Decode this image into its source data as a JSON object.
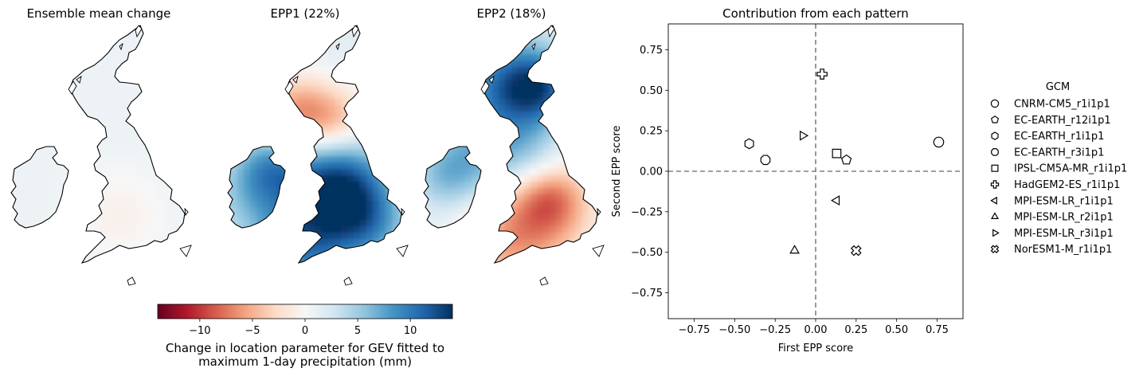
{
  "maps": [
    {
      "title": "Ensemble mean change"
    },
    {
      "title": "EPP1 (22%)"
    },
    {
      "title": "EPP2 (18%)"
    }
  ],
  "colorbar": {
    "ticks": [
      -10,
      -5,
      0,
      5,
      10
    ],
    "range": [
      -14,
      14
    ],
    "label_line1": "Change in location parameter for GEV fitted to",
    "label_line2": "maximum 1-day precipitation (mm)",
    "colormap": [
      "#67001f",
      "#b2182b",
      "#d6604d",
      "#f4a582",
      "#fddbc7",
      "#f7f7f7",
      "#d1e5f0",
      "#92c5de",
      "#4393c3",
      "#2166ac",
      "#053061"
    ]
  },
  "chart_data": {
    "type": "scatter",
    "title": "Contribution from each pattern",
    "xlabel": "First EPP score",
    "ylabel": "Second EPP score",
    "xlim": [
      -0.91,
      0.91
    ],
    "ylim": [
      -0.91,
      0.91
    ],
    "xticks": [
      -0.75,
      -0.5,
      -0.25,
      0.0,
      0.25,
      0.5,
      0.75
    ],
    "yticks": [
      -0.75,
      -0.5,
      -0.25,
      0.0,
      0.25,
      0.5,
      0.75
    ],
    "xtick_labels": [
      "−0.75",
      "−0.50",
      "−0.25",
      "0.00",
      "0.25",
      "0.50",
      "0.75"
    ],
    "ytick_labels": [
      "−0.75",
      "−0.50",
      "−0.25",
      "0.00",
      "0.25",
      "0.50",
      "0.75"
    ],
    "grid": false,
    "reference_lines": {
      "x": 0,
      "y": 0,
      "style": "dashed",
      "color": "#808080"
    },
    "legend": {
      "title": "GCM",
      "placement": "outside-right"
    },
    "series": [
      {
        "name": "CNRM-CM5_r1i1p1",
        "marker": "circle",
        "x": 0.76,
        "y": 0.18
      },
      {
        "name": "EC-EARTH_r12i1p1",
        "marker": "pentagon",
        "x": 0.19,
        "y": 0.07
      },
      {
        "name": "EC-EARTH_r1i1p1",
        "marker": "hexagon",
        "x": -0.41,
        "y": 0.17
      },
      {
        "name": "EC-EARTH_r3i1p1",
        "marker": "octagon",
        "x": -0.31,
        "y": 0.07
      },
      {
        "name": "IPSL-CM5A-MR_r1i1p1",
        "marker": "square",
        "x": 0.13,
        "y": 0.11
      },
      {
        "name": "HadGEM2-ES_r1i1p1",
        "marker": "plus",
        "x": 0.04,
        "y": 0.6
      },
      {
        "name": "MPI-ESM-LR_r1i1p1",
        "marker": "triangle-left",
        "x": 0.13,
        "y": -0.18
      },
      {
        "name": "MPI-ESM-LR_r2i1p1",
        "marker": "triangle-up",
        "x": -0.13,
        "y": -0.49
      },
      {
        "name": "MPI-ESM-LR_r3i1p1",
        "marker": "triangle-right",
        "x": -0.08,
        "y": 0.22
      },
      {
        "name": "NorESM1-M_r1i1p1",
        "marker": "x-filled",
        "x": 0.25,
        "y": -0.49
      }
    ]
  }
}
